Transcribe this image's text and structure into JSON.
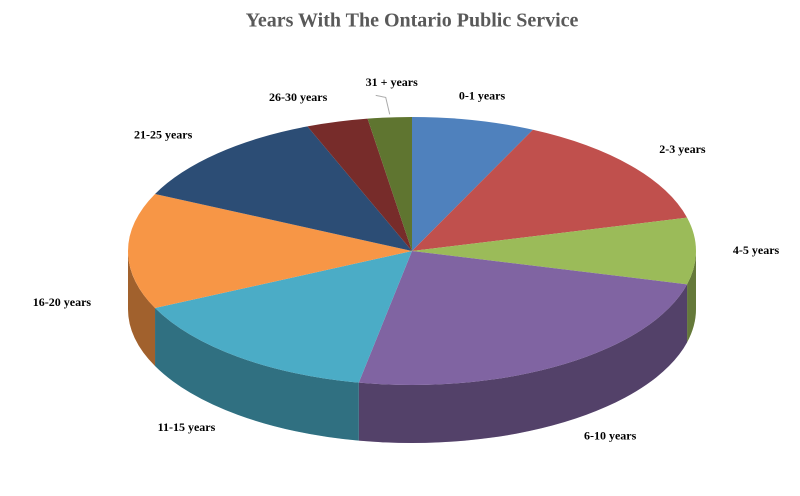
{
  "chart_data": {
    "type": "pie3d",
    "title": "Years With The Ontario Public Service",
    "categories": [
      "0-1 years",
      "2-3 years",
      "4-5 years",
      "6-10 years",
      "11-15 years",
      "16-20 years",
      "21-25 years",
      "26-30 years",
      "31 + years"
    ],
    "values": [
      7,
      14,
      8,
      24,
      15,
      14,
      12,
      3.5,
      2.5
    ],
    "colors": [
      "#4f81bd",
      "#c0504d",
      "#9bbb59",
      "#8064a2",
      "#4bacc6",
      "#f79646",
      "#2c4d75",
      "#772c2a",
      "#5f7530"
    ]
  }
}
